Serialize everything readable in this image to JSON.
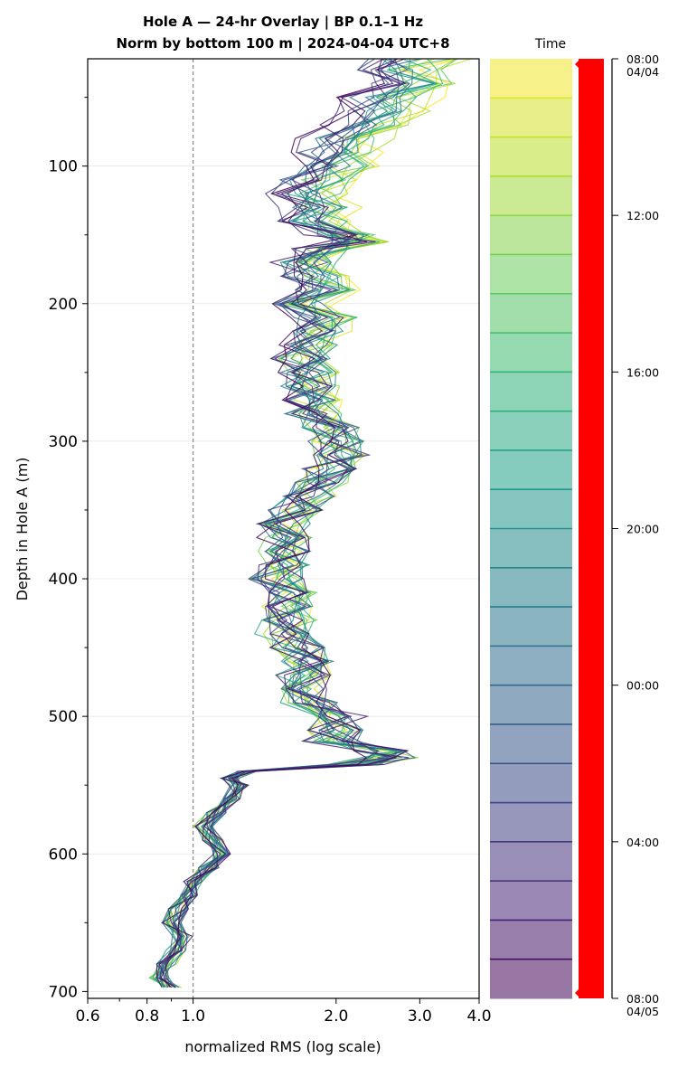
{
  "chart_data": {
    "type": "line",
    "title_line1": "Hole A — 24-hr Overlay  |  BP 0.1–1 Hz",
    "title_line2": "Norm by bottom 100 m  |  2024-04-04 UTC+8",
    "xlabel": "normalized RMS  (log scale)",
    "ylabel": "Depth in Hole A (m)",
    "x_scale": "log",
    "xlim": [
      0.6,
      4.0
    ],
    "ylim": [
      705,
      22
    ],
    "y_inverted": true,
    "x_ticks": [
      0.6,
      0.8,
      1.0,
      2.0,
      3.0,
      4.0
    ],
    "x_tick_labels": [
      "0.6",
      "0.8",
      "1.0",
      "2.0",
      "3.0",
      "4.0"
    ],
    "y_ticks": [
      100,
      200,
      300,
      400,
      500,
      600,
      700
    ],
    "y_tick_labels": [
      "100",
      "200",
      "300",
      "400",
      "500",
      "600",
      "700"
    ],
    "y_minor_ticks": [
      50,
      150,
      250,
      350,
      450,
      550,
      650
    ],
    "grid": "horizontal at major y ticks",
    "reference_line": {
      "x": 1.0,
      "style": "dashed gray"
    },
    "colorbar": {
      "label": "Time",
      "colormap": "viridis (reversed: yellow at 08:00 04/04, dark purple at 08:00 04/05)",
      "ticks": [
        {
          "hour": 0,
          "label": "08:00",
          "sublabel": "04/04"
        },
        {
          "hour": 4,
          "label": "12:00",
          "sublabel": ""
        },
        {
          "hour": 8,
          "label": "16:00",
          "sublabel": ""
        },
        {
          "hour": 12,
          "label": "20:00",
          "sublabel": ""
        },
        {
          "hour": 16,
          "label": "00:00",
          "sublabel": ""
        },
        {
          "hour": 20,
          "label": "04:00",
          "sublabel": ""
        },
        {
          "hour": 24,
          "label": "08:00",
          "sublabel": "04/05"
        }
      ],
      "n_bands": 24,
      "accent_color": "#ff0000"
    },
    "depth": [
      22,
      30,
      40,
      50,
      60,
      70,
      80,
      90,
      100,
      110,
      120,
      130,
      140,
      150,
      155,
      160,
      170,
      180,
      190,
      200,
      210,
      220,
      230,
      240,
      250,
      260,
      270,
      280,
      290,
      300,
      310,
      320,
      330,
      340,
      350,
      360,
      370,
      380,
      390,
      400,
      410,
      420,
      430,
      440,
      450,
      460,
      470,
      480,
      490,
      500,
      510,
      518,
      525,
      530,
      535,
      540,
      545,
      550,
      560,
      570,
      580,
      590,
      600,
      610,
      620,
      630,
      640,
      650,
      660,
      670,
      680,
      690,
      697
    ],
    "series_base": [
      2.95,
      2.7,
      2.85,
      2.55,
      2.5,
      2.3,
      2.1,
      2.0,
      1.95,
      1.8,
      1.75,
      1.85,
      1.8,
      2.1,
      2.3,
      1.9,
      1.75,
      1.8,
      1.9,
      1.7,
      1.9,
      1.8,
      1.75,
      1.7,
      1.75,
      1.75,
      1.8,
      1.8,
      1.95,
      2.0,
      2.05,
      1.95,
      1.85,
      1.75,
      1.65,
      1.55,
      1.55,
      1.55,
      1.55,
      1.5,
      1.6,
      1.6,
      1.6,
      1.55,
      1.65,
      1.75,
      1.7,
      1.75,
      1.75,
      2.05,
      2.0,
      1.95,
      2.5,
      2.6,
      2.2,
      1.3,
      1.2,
      1.25,
      1.2,
      1.12,
      1.05,
      1.1,
      1.15,
      1.08,
      1.0,
      0.98,
      0.93,
      0.9,
      0.95,
      0.92,
      0.88,
      0.85,
      0.9
    ],
    "series_hours": [
      0,
      1,
      2,
      3,
      4,
      5,
      6,
      7,
      8,
      9,
      10,
      11,
      12,
      13,
      14,
      15,
      16,
      17,
      18,
      19,
      20,
      21,
      22,
      23,
      24
    ]
  }
}
